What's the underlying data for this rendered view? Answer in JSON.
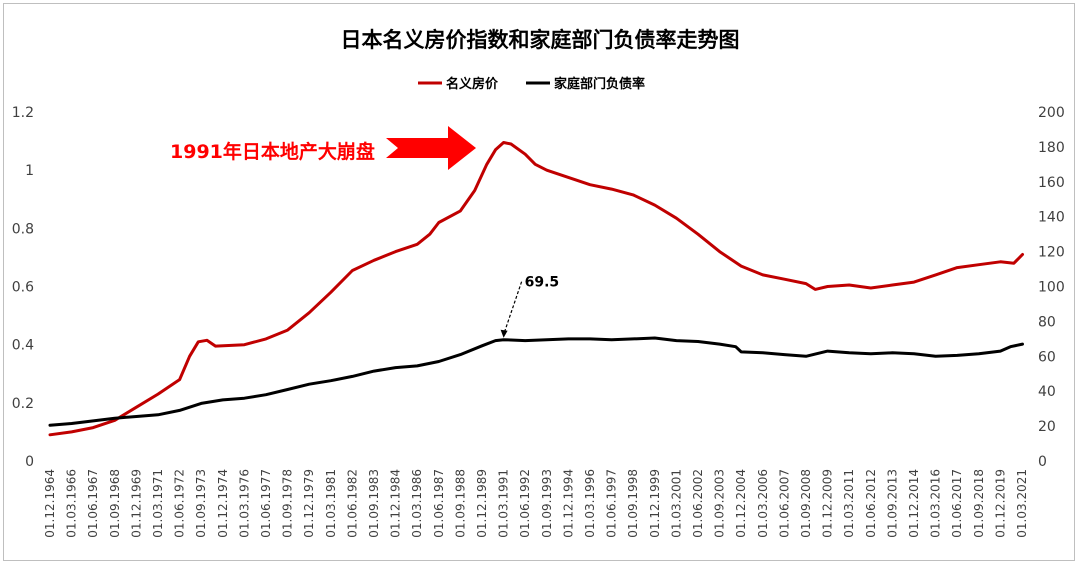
{
  "chart_data": {
    "type": "line",
    "title": "日本名义房价指数和家庭部门负债率走势图",
    "legend_position": "top-center",
    "grid": false,
    "y_left": {
      "min": 0,
      "max": 1.2,
      "ticks": [
        "0",
        "0.2",
        "0.4",
        "0.6",
        "0.8",
        "1",
        "1.2"
      ]
    },
    "y_right": {
      "min": 0,
      "max": 200,
      "ticks": [
        "0",
        "20",
        "40",
        "60",
        "80",
        "100",
        "120",
        "140",
        "160",
        "180",
        "200"
      ]
    },
    "x_tick_labels": [
      "01.12.1964",
      "01.03.1966",
      "01.06.1967",
      "01.09.1968",
      "01.12.1969",
      "01.03.1971",
      "01.06.1972",
      "01.09.1973",
      "01.12.1974",
      "01.03.1976",
      "01.06.1977",
      "01.09.1978",
      "01.12.1979",
      "01.03.1981",
      "01.06.1982",
      "01.09.1983",
      "01.12.1984",
      "01.03.1986",
      "01.06.1987",
      "01.09.1988",
      "01.12.1989",
      "01.03.1991",
      "01.06.1992",
      "01.09.1993",
      "01.12.1994",
      "01.03.1996",
      "01.06.1997",
      "01.09.1998",
      "01.12.1999",
      "01.03.2001",
      "01.06.2002",
      "01.09.2003",
      "01.12.2004",
      "01.03.2006",
      "01.06.2007",
      "01.09.2008",
      "01.12.2009",
      "01.03.2011",
      "01.06.2012",
      "01.09.2013",
      "01.12.2014",
      "01.03.2016",
      "01.06.2017",
      "01.09.2018",
      "01.12.2019",
      "01.03.2021"
    ],
    "series": [
      {
        "name": "名义房价",
        "axis": "left",
        "color": "#c00000",
        "points": [
          [
            1964.92,
            0.09
          ],
          [
            1966.17,
            0.1
          ],
          [
            1967.42,
            0.115
          ],
          [
            1968.67,
            0.14
          ],
          [
            1969.92,
            0.185
          ],
          [
            1971.17,
            0.23
          ],
          [
            1972.42,
            0.28
          ],
          [
            1973.0,
            0.36
          ],
          [
            1973.5,
            0.41
          ],
          [
            1974.0,
            0.415
          ],
          [
            1974.5,
            0.395
          ],
          [
            1976.17,
            0.4
          ],
          [
            1977.42,
            0.42
          ],
          [
            1978.67,
            0.45
          ],
          [
            1979.92,
            0.51
          ],
          [
            1981.17,
            0.58
          ],
          [
            1982.42,
            0.655
          ],
          [
            1983.67,
            0.69
          ],
          [
            1984.92,
            0.72
          ],
          [
            1986.17,
            0.745
          ],
          [
            1986.9,
            0.78
          ],
          [
            1987.42,
            0.82
          ],
          [
            1988.67,
            0.86
          ],
          [
            1989.5,
            0.93
          ],
          [
            1990.2,
            1.02
          ],
          [
            1990.7,
            1.07
          ],
          [
            1991.17,
            1.095
          ],
          [
            1991.6,
            1.09
          ],
          [
            1992.42,
            1.055
          ],
          [
            1993.0,
            1.02
          ],
          [
            1993.67,
            1.0
          ],
          [
            1994.92,
            0.975
          ],
          [
            1996.17,
            0.95
          ],
          [
            1997.42,
            0.935
          ],
          [
            1998.67,
            0.915
          ],
          [
            1999.92,
            0.88
          ],
          [
            2001.17,
            0.835
          ],
          [
            2002.42,
            0.78
          ],
          [
            2003.67,
            0.72
          ],
          [
            2004.92,
            0.67
          ],
          [
            2006.17,
            0.64
          ],
          [
            2007.42,
            0.625
          ],
          [
            2008.67,
            0.61
          ],
          [
            2009.2,
            0.59
          ],
          [
            2009.92,
            0.6
          ],
          [
            2011.17,
            0.605
          ],
          [
            2012.42,
            0.595
          ],
          [
            2013.67,
            0.605
          ],
          [
            2014.92,
            0.615
          ],
          [
            2016.17,
            0.64
          ],
          [
            2017.42,
            0.665
          ],
          [
            2018.67,
            0.675
          ],
          [
            2019.92,
            0.685
          ],
          [
            2020.7,
            0.68
          ],
          [
            2021.2,
            0.71
          ]
        ]
      },
      {
        "name": "家庭部门负债率",
        "axis": "right",
        "color": "#000000",
        "points": [
          [
            1964.92,
            20.5
          ],
          [
            1966.17,
            21.5
          ],
          [
            1967.42,
            23.0
          ],
          [
            1968.67,
            24.5
          ],
          [
            1969.92,
            25.5
          ],
          [
            1971.17,
            26.5
          ],
          [
            1972.42,
            29.0
          ],
          [
            1973.67,
            33.0
          ],
          [
            1974.92,
            35.0
          ],
          [
            1976.17,
            36.0
          ],
          [
            1977.42,
            38.0
          ],
          [
            1978.67,
            41.0
          ],
          [
            1979.92,
            44.0
          ],
          [
            1981.17,
            46.0
          ],
          [
            1982.42,
            48.5
          ],
          [
            1983.67,
            51.5
          ],
          [
            1984.92,
            53.5
          ],
          [
            1986.17,
            54.5
          ],
          [
            1987.42,
            57.0
          ],
          [
            1988.67,
            61.0
          ],
          [
            1989.92,
            66.0
          ],
          [
            1990.7,
            69.0
          ],
          [
            1991.17,
            69.5
          ],
          [
            1992.42,
            69.0
          ],
          [
            1993.67,
            69.5
          ],
          [
            1994.92,
            70.0
          ],
          [
            1996.17,
            70.0
          ],
          [
            1997.42,
            69.5
          ],
          [
            1998.67,
            70.0
          ],
          [
            1999.92,
            70.5
          ],
          [
            2001.17,
            69.0
          ],
          [
            2002.42,
            68.5
          ],
          [
            2003.67,
            67.0
          ],
          [
            2004.6,
            65.5
          ],
          [
            2004.92,
            62.5
          ],
          [
            2006.17,
            62.0
          ],
          [
            2007.42,
            61.0
          ],
          [
            2008.67,
            60.0
          ],
          [
            2009.92,
            63.0
          ],
          [
            2011.17,
            62.0
          ],
          [
            2012.42,
            61.5
          ],
          [
            2013.67,
            62.0
          ],
          [
            2014.92,
            61.5
          ],
          [
            2016.17,
            60.0
          ],
          [
            2017.42,
            60.5
          ],
          [
            2018.67,
            61.5
          ],
          [
            2019.92,
            63.0
          ],
          [
            2020.5,
            65.5
          ],
          [
            2021.2,
            67.0
          ]
        ]
      }
    ],
    "annotations": [
      {
        "id": "crash",
        "text": "1991年日本地产大崩盘",
        "color": "#ff0000"
      },
      {
        "id": "peak",
        "text": "69.5",
        "x": 1991.17,
        "y": 69.5,
        "axis": "right"
      }
    ]
  }
}
